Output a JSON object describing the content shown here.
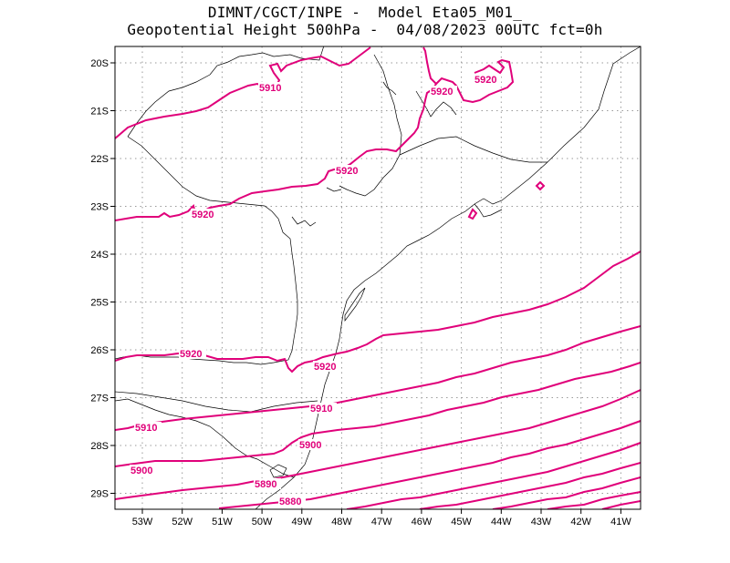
{
  "header": {
    "line1": "DIMNT/CGCT/INPE -  Model Eta05_M01_",
    "line2": "Geopotential Height 500hPa -  04/08/2023 00UTC fct=0h"
  },
  "axes": {
    "lat_labels": [
      "20S",
      "21S",
      "22S",
      "23S",
      "24S",
      "25S",
      "26S",
      "27S",
      "28S",
      "29S"
    ],
    "lon_labels": [
      "53W",
      "52W",
      "51W",
      "50W",
      "49W",
      "48W",
      "47W",
      "46W",
      "45W",
      "44W",
      "43W",
      "42W",
      "41W"
    ]
  },
  "contours": [
    {
      "value": "5880",
      "label": "5880"
    },
    {
      "value": "5890",
      "label": "5890"
    },
    {
      "value": "5900",
      "label": "5900"
    },
    {
      "value": "5910",
      "label": "5910"
    },
    {
      "value": "5920",
      "label": "5920"
    }
  ],
  "colors": {
    "contour": "#e0007a",
    "coast": "#000000",
    "grid": "#9a9a9a"
  }
}
